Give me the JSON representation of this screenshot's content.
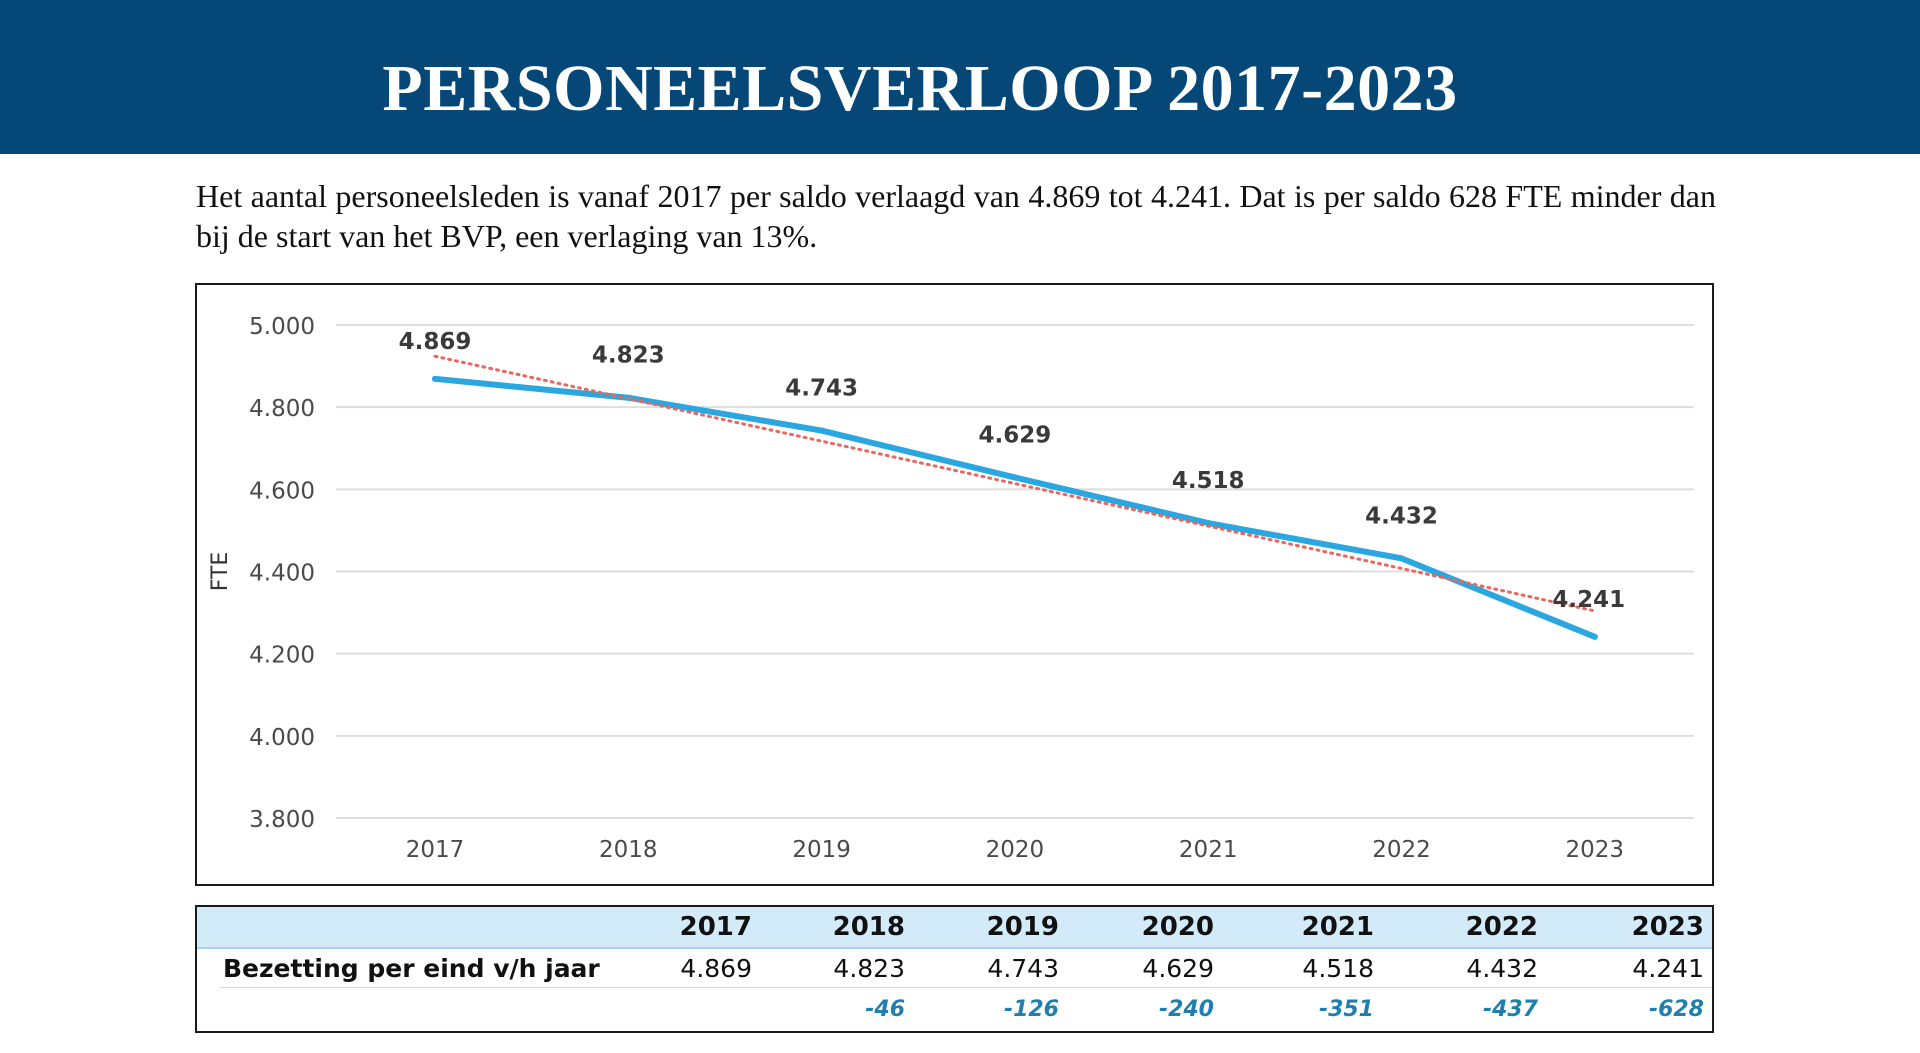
{
  "header": {
    "title": "PERSONEELSVERLOOP 2017-2023"
  },
  "intro": {
    "text": "Het aantal personeelsleden is vanaf 2017 per saldo verlaagd van 4.869 tot 4.241. Dat is per saldo 628 FTE minder dan bij de start van het BVP, een verlaging van 13%."
  },
  "colors": {
    "banner": "#054878",
    "line": "#2aa6e0",
    "trend": "#e8685f",
    "grid": "#dedede",
    "table_header": "#d3ebf8",
    "diff_text": "#1f7fae"
  },
  "chart_data": {
    "type": "line",
    "ylabel": "FTE",
    "ylim": [
      3800,
      5000
    ],
    "y_ticks": [
      5000,
      4800,
      4600,
      4400,
      4200,
      4000,
      3800
    ],
    "y_tick_labels": [
      "5.000",
      "4.800",
      "4.600",
      "4.400",
      "4.200",
      "4.000",
      "3.800"
    ],
    "categories": [
      "2017",
      "2018",
      "2019",
      "2020",
      "2021",
      "2022",
      "2023"
    ],
    "series": [
      {
        "name": "Bezetting",
        "values": [
          4869,
          4823,
          4743,
          4629,
          4518,
          4432,
          4241
        ],
        "data_labels": [
          "4.869",
          "4.823",
          "4.743",
          "4.629",
          "4.518",
          "4.432",
          "4.241"
        ]
      }
    ],
    "trendline": {
      "style": "dotted",
      "start": 4924,
      "end": 4304
    },
    "grid": true
  },
  "table": {
    "years": [
      "2017",
      "2018",
      "2019",
      "2020",
      "2021",
      "2022",
      "2023"
    ],
    "row_label": "Bezetting per eind v/h jaar",
    "values": [
      "4.869",
      "4.823",
      "4.743",
      "4.629",
      "4.518",
      "4.432",
      "4.241"
    ],
    "diffs": [
      "",
      "-46",
      "-126",
      "-240",
      "-351",
      "-437",
      "-628"
    ]
  }
}
